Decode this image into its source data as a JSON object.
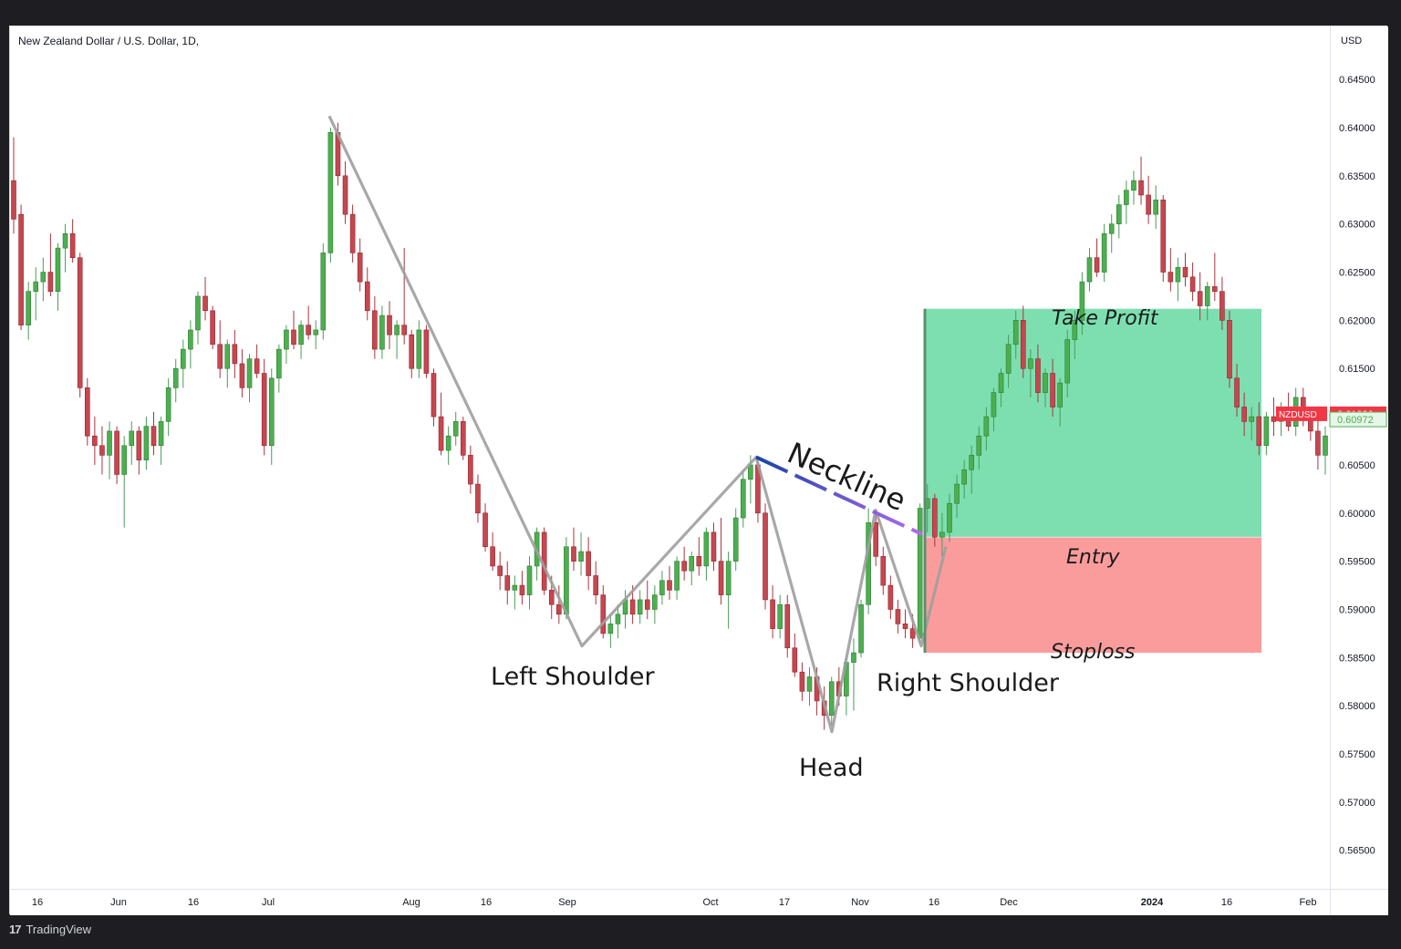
{
  "chart_title": "New Zealand Dollar / U.S. Dollar, 1D,",
  "currency": "USD",
  "footer": {
    "brand": "TradingView",
    "logo_glyph": "17"
  },
  "colors": {
    "up": "#26a69a",
    "up_body": "#4caf50",
    "down": "#ef5350",
    "down_body": "#c7474f",
    "pattern_line": "#9e9e9e",
    "take_profit": "#7ddfb0",
    "stoploss": "#fb9c9c",
    "neckline_start": "#1a44a8",
    "neckline_end": "#b36cf0",
    "price_tag": "#f23645",
    "price_tag2": "#e8f5e9"
  },
  "chart_data": {
    "type": "candlestick",
    "symbol": "NZDUSD",
    "y_range": [
      0.561,
      0.6505
    ],
    "y_ticks": [
      "0.64500",
      "0.64000",
      "0.63500",
      "0.63000",
      "0.62500",
      "0.62000",
      "0.61500",
      "0.61000",
      "0.60500",
      "0.60000",
      "0.59500",
      "0.59000",
      "0.58500",
      "0.58000",
      "0.57500",
      "0.57000",
      "0.56500"
    ],
    "x_ticks": [
      "16",
      "Jun",
      "16",
      "Jul",
      "Aug",
      "16",
      "Sep",
      "Oct",
      "17",
      "Nov",
      "16",
      "Dec",
      "2024",
      "16",
      "Feb"
    ],
    "last_price": "0.61030",
    "last_price_label": "NZDUSD",
    "secondary_price": "0.60972",
    "annotations": {
      "neckline": "Neckline",
      "left_shoulder": "Left Shoulder",
      "head": "Head",
      "right_shoulder": "Right Shoulder",
      "take_profit": "Take Profit",
      "entry": "Entry",
      "stoploss": "Stoploss"
    },
    "levels": {
      "take_profit": 0.6212,
      "entry": 0.5975,
      "stoploss": 0.5855
    },
    "pattern_points": [
      {
        "label": "Jul peak",
        "price": 0.6412
      },
      {
        "label": "left shoulder",
        "price": 0.5862
      },
      {
        "label": "neck 1",
        "price": 0.6058
      },
      {
        "label": "head",
        "price": 0.5773
      },
      {
        "label": "neck 2",
        "price": 0.6003
      },
      {
        "label": "right shoulder",
        "price": 0.5862
      }
    ],
    "candles_ohlc": [
      [
        0.6345,
        0.639,
        0.629,
        0.6305
      ],
      [
        0.631,
        0.632,
        0.619,
        0.6195
      ],
      [
        0.6195,
        0.624,
        0.618,
        0.623
      ],
      [
        0.623,
        0.6255,
        0.62,
        0.624
      ],
      [
        0.624,
        0.6265,
        0.622,
        0.625
      ],
      [
        0.625,
        0.629,
        0.6225,
        0.623
      ],
      [
        0.623,
        0.628,
        0.621,
        0.6275
      ],
      [
        0.6275,
        0.63,
        0.625,
        0.629
      ],
      [
        0.629,
        0.6305,
        0.626,
        0.6265
      ],
      [
        0.6265,
        0.627,
        0.612,
        0.613
      ],
      [
        0.613,
        0.614,
        0.607,
        0.608
      ],
      [
        0.608,
        0.61,
        0.605,
        0.607
      ],
      [
        0.607,
        0.609,
        0.604,
        0.606
      ],
      [
        0.606,
        0.6095,
        0.6035,
        0.6085
      ],
      [
        0.6085,
        0.609,
        0.603,
        0.604
      ],
      [
        0.604,
        0.608,
        0.5985,
        0.607
      ],
      [
        0.607,
        0.6095,
        0.605,
        0.6085
      ],
      [
        0.6085,
        0.609,
        0.604,
        0.6055
      ],
      [
        0.6055,
        0.61,
        0.6045,
        0.609
      ],
      [
        0.609,
        0.6105,
        0.606,
        0.607
      ],
      [
        0.607,
        0.61,
        0.605,
        0.6095
      ],
      [
        0.6095,
        0.614,
        0.608,
        0.613
      ],
      [
        0.613,
        0.616,
        0.6115,
        0.615
      ],
      [
        0.615,
        0.618,
        0.613,
        0.617
      ],
      [
        0.617,
        0.62,
        0.615,
        0.619
      ],
      [
        0.619,
        0.623,
        0.6175,
        0.6225
      ],
      [
        0.6225,
        0.6245,
        0.62,
        0.621
      ],
      [
        0.621,
        0.6215,
        0.617,
        0.6175
      ],
      [
        0.6175,
        0.62,
        0.614,
        0.615
      ],
      [
        0.615,
        0.618,
        0.613,
        0.6175
      ],
      [
        0.6175,
        0.619,
        0.614,
        0.6155
      ],
      [
        0.6155,
        0.617,
        0.612,
        0.613
      ],
      [
        0.613,
        0.6165,
        0.6115,
        0.616
      ],
      [
        0.616,
        0.6175,
        0.614,
        0.6145
      ],
      [
        0.6145,
        0.616,
        0.606,
        0.607
      ],
      [
        0.607,
        0.615,
        0.605,
        0.614
      ],
      [
        0.614,
        0.6175,
        0.6125,
        0.617
      ],
      [
        0.617,
        0.6195,
        0.6155,
        0.619
      ],
      [
        0.619,
        0.621,
        0.617,
        0.6175
      ],
      [
        0.6175,
        0.62,
        0.616,
        0.6195
      ],
      [
        0.6195,
        0.6215,
        0.618,
        0.6185
      ],
      [
        0.6185,
        0.62,
        0.617,
        0.619
      ],
      [
        0.619,
        0.628,
        0.618,
        0.627
      ],
      [
        0.627,
        0.64,
        0.626,
        0.6395
      ],
      [
        0.6395,
        0.6405,
        0.634,
        0.635
      ],
      [
        0.635,
        0.6365,
        0.63,
        0.631
      ],
      [
        0.631,
        0.632,
        0.626,
        0.627
      ],
      [
        0.627,
        0.6285,
        0.623,
        0.624
      ],
      [
        0.624,
        0.6255,
        0.62,
        0.621
      ],
      [
        0.621,
        0.6225,
        0.616,
        0.617
      ],
      [
        0.617,
        0.6215,
        0.616,
        0.6205
      ],
      [
        0.6205,
        0.622,
        0.617,
        0.6185
      ],
      [
        0.6185,
        0.62,
        0.616,
        0.6195
      ],
      [
        0.6195,
        0.6275,
        0.6175,
        0.6185
      ],
      [
        0.6185,
        0.619,
        0.614,
        0.615
      ],
      [
        0.615,
        0.62,
        0.614,
        0.619
      ],
      [
        0.619,
        0.6195,
        0.614,
        0.6145
      ],
      [
        0.6145,
        0.615,
        0.609,
        0.61
      ],
      [
        0.61,
        0.6125,
        0.606,
        0.6065
      ],
      [
        0.6065,
        0.609,
        0.605,
        0.608
      ],
      [
        0.608,
        0.6105,
        0.607,
        0.6095
      ],
      [
        0.6095,
        0.61,
        0.6055,
        0.606
      ],
      [
        0.606,
        0.607,
        0.602,
        0.603
      ],
      [
        0.603,
        0.604,
        0.599,
        0.6
      ],
      [
        0.6,
        0.601,
        0.596,
        0.5965
      ],
      [
        0.5965,
        0.598,
        0.594,
        0.5945
      ],
      [
        0.5945,
        0.596,
        0.592,
        0.5935
      ],
      [
        0.5935,
        0.595,
        0.5905,
        0.592
      ],
      [
        0.592,
        0.5935,
        0.59,
        0.5925
      ],
      [
        0.5925,
        0.594,
        0.5905,
        0.5915
      ],
      [
        0.5915,
        0.5955,
        0.59,
        0.5945
      ],
      [
        0.5945,
        0.5985,
        0.593,
        0.598
      ],
      [
        0.598,
        0.5985,
        0.5915,
        0.592
      ],
      [
        0.592,
        0.5935,
        0.589,
        0.5905
      ],
      [
        0.5905,
        0.5925,
        0.5885,
        0.5895
      ],
      [
        0.5895,
        0.5975,
        0.589,
        0.5965
      ],
      [
        0.5965,
        0.5985,
        0.594,
        0.595
      ],
      [
        0.595,
        0.598,
        0.5935,
        0.596
      ],
      [
        0.596,
        0.5975,
        0.592,
        0.5935
      ],
      [
        0.5935,
        0.595,
        0.5905,
        0.5915
      ],
      [
        0.5915,
        0.5925,
        0.587,
        0.5875
      ],
      [
        0.5875,
        0.5895,
        0.586,
        0.5885
      ],
      [
        0.5885,
        0.5905,
        0.587,
        0.5895
      ],
      [
        0.5895,
        0.592,
        0.588,
        0.591
      ],
      [
        0.591,
        0.5925,
        0.5885,
        0.5895
      ],
      [
        0.5895,
        0.592,
        0.5885,
        0.591
      ],
      [
        0.591,
        0.593,
        0.589,
        0.59
      ],
      [
        0.59,
        0.5925,
        0.5885,
        0.5915
      ],
      [
        0.5915,
        0.594,
        0.5905,
        0.593
      ],
      [
        0.593,
        0.5945,
        0.591,
        0.592
      ],
      [
        0.592,
        0.5955,
        0.591,
        0.595
      ],
      [
        0.595,
        0.5965,
        0.593,
        0.594
      ],
      [
        0.594,
        0.596,
        0.5925,
        0.5955
      ],
      [
        0.5955,
        0.5975,
        0.5935,
        0.5945
      ],
      [
        0.5945,
        0.5985,
        0.593,
        0.598
      ],
      [
        0.598,
        0.599,
        0.594,
        0.595
      ],
      [
        0.595,
        0.5995,
        0.5905,
        0.5915
      ],
      [
        0.5915,
        0.596,
        0.588,
        0.595
      ],
      [
        0.595,
        0.6005,
        0.594,
        0.5995
      ],
      [
        0.5995,
        0.6045,
        0.5985,
        0.6035
      ],
      [
        0.6035,
        0.606,
        0.601,
        0.605
      ],
      [
        0.605,
        0.6055,
        0.599,
        0.6
      ],
      [
        0.6,
        0.601,
        0.59,
        0.591
      ],
      [
        0.591,
        0.5925,
        0.587,
        0.588
      ],
      [
        0.588,
        0.5915,
        0.587,
        0.5905
      ],
      [
        0.5905,
        0.5915,
        0.585,
        0.586
      ],
      [
        0.586,
        0.5875,
        0.583,
        0.5835
      ],
      [
        0.5835,
        0.5845,
        0.5805,
        0.5815
      ],
      [
        0.5815,
        0.584,
        0.58,
        0.583
      ],
      [
        0.583,
        0.584,
        0.579,
        0.5805
      ],
      [
        0.5805,
        0.582,
        0.5775,
        0.579
      ],
      [
        0.579,
        0.583,
        0.578,
        0.5825
      ],
      [
        0.5825,
        0.584,
        0.58,
        0.581
      ],
      [
        0.581,
        0.585,
        0.579,
        0.5845
      ],
      [
        0.5845,
        0.587,
        0.5795,
        0.5855
      ],
      [
        0.5855,
        0.591,
        0.585,
        0.5905
      ],
      [
        0.5905,
        0.6005,
        0.5895,
        0.599
      ],
      [
        0.599,
        0.6,
        0.5945,
        0.5955
      ],
      [
        0.5955,
        0.5965,
        0.5915,
        0.5925
      ],
      [
        0.5925,
        0.5935,
        0.589,
        0.59
      ],
      [
        0.59,
        0.591,
        0.5875,
        0.5885
      ],
      [
        0.5885,
        0.59,
        0.587,
        0.588
      ],
      [
        0.588,
        0.5895,
        0.586,
        0.587
      ],
      [
        0.587,
        0.601,
        0.5865,
        0.6005
      ],
      [
        0.6005,
        0.603,
        0.598,
        0.6015
      ],
      [
        0.6015,
        0.602,
        0.5965,
        0.5975
      ],
      [
        0.5975,
        0.6,
        0.5955,
        0.598
      ],
      [
        0.598,
        0.602,
        0.597,
        0.601
      ],
      [
        0.601,
        0.604,
        0.5995,
        0.603
      ],
      [
        0.603,
        0.6055,
        0.6015,
        0.6045
      ],
      [
        0.6045,
        0.607,
        0.602,
        0.606
      ],
      [
        0.606,
        0.609,
        0.6045,
        0.608
      ],
      [
        0.608,
        0.611,
        0.6065,
        0.61
      ],
      [
        0.61,
        0.613,
        0.6085,
        0.6125
      ],
      [
        0.6125,
        0.615,
        0.611,
        0.6145
      ],
      [
        0.6145,
        0.6185,
        0.613,
        0.6175
      ],
      [
        0.6175,
        0.621,
        0.616,
        0.62
      ],
      [
        0.62,
        0.6215,
        0.614,
        0.615
      ],
      [
        0.615,
        0.617,
        0.612,
        0.616
      ],
      [
        0.616,
        0.6175,
        0.6115,
        0.6125
      ],
      [
        0.6125,
        0.615,
        0.611,
        0.6145
      ],
      [
        0.6145,
        0.616,
        0.61,
        0.611
      ],
      [
        0.611,
        0.614,
        0.609,
        0.6135
      ],
      [
        0.6135,
        0.619,
        0.612,
        0.618
      ],
      [
        0.618,
        0.621,
        0.616,
        0.62
      ],
      [
        0.62,
        0.625,
        0.6185,
        0.624
      ],
      [
        0.624,
        0.6275,
        0.623,
        0.6265
      ],
      [
        0.6265,
        0.6285,
        0.6245,
        0.625
      ],
      [
        0.625,
        0.63,
        0.624,
        0.629
      ],
      [
        0.629,
        0.631,
        0.627,
        0.63
      ],
      [
        0.63,
        0.633,
        0.6285,
        0.632
      ],
      [
        0.632,
        0.6345,
        0.63,
        0.6335
      ],
      [
        0.6335,
        0.6355,
        0.632,
        0.6345
      ],
      [
        0.6345,
        0.637,
        0.632,
        0.633
      ],
      [
        0.633,
        0.635,
        0.63,
        0.631
      ],
      [
        0.631,
        0.634,
        0.6295,
        0.6325
      ],
      [
        0.6325,
        0.633,
        0.624,
        0.625
      ],
      [
        0.625,
        0.6275,
        0.623,
        0.624
      ],
      [
        0.624,
        0.6265,
        0.622,
        0.6255
      ],
      [
        0.6255,
        0.627,
        0.6235,
        0.6245
      ],
      [
        0.6245,
        0.626,
        0.622,
        0.623
      ],
      [
        0.623,
        0.625,
        0.62,
        0.6215
      ],
      [
        0.6215,
        0.624,
        0.62,
        0.6235
      ],
      [
        0.6235,
        0.627,
        0.622,
        0.623
      ],
      [
        0.623,
        0.6245,
        0.619,
        0.62
      ],
      [
        0.62,
        0.621,
        0.613,
        0.614
      ],
      [
        0.614,
        0.6155,
        0.61,
        0.611
      ],
      [
        0.611,
        0.6125,
        0.608,
        0.6095
      ],
      [
        0.6095,
        0.611,
        0.6075,
        0.61
      ],
      [
        0.61,
        0.6115,
        0.606,
        0.607
      ],
      [
        0.607,
        0.6105,
        0.606,
        0.61
      ],
      [
        0.61,
        0.612,
        0.608,
        0.6095
      ],
      [
        0.6095,
        0.6115,
        0.608,
        0.6105
      ],
      [
        0.6105,
        0.6125,
        0.6085,
        0.609
      ],
      [
        0.609,
        0.613,
        0.608,
        0.612
      ],
      [
        0.612,
        0.613,
        0.609,
        0.61
      ],
      [
        0.61,
        0.611,
        0.6075,
        0.6085
      ],
      [
        0.6085,
        0.61,
        0.6045,
        0.606
      ],
      [
        0.606,
        0.609,
        0.604,
        0.608
      ]
    ]
  }
}
